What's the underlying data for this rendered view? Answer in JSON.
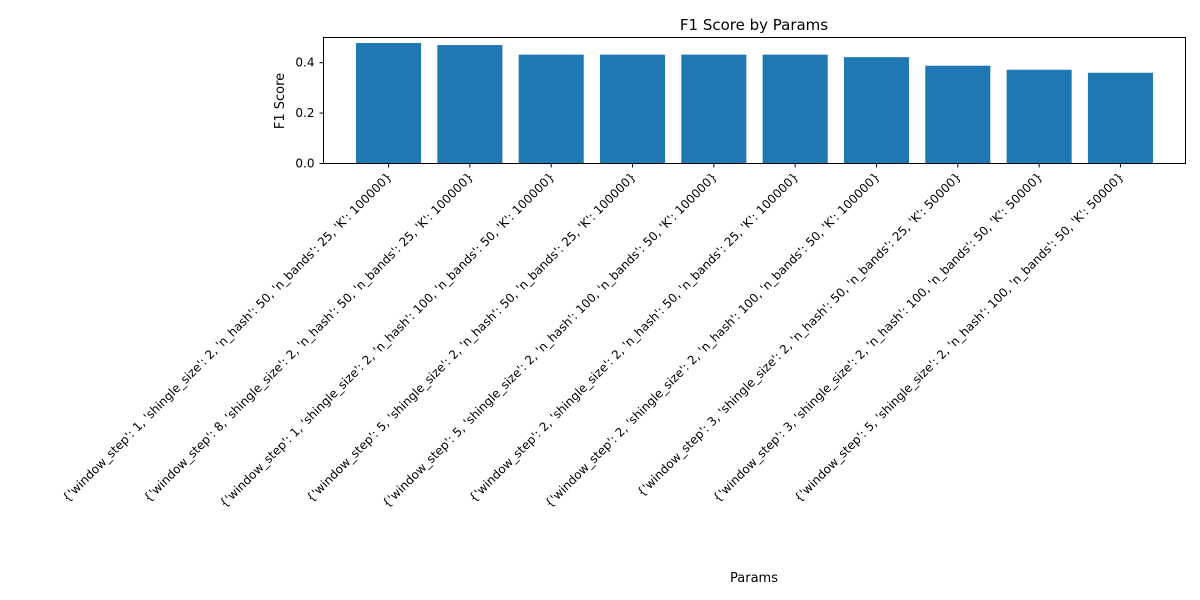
{
  "chart_data": {
    "type": "bar",
    "title": "F1 Score by Params",
    "xlabel": "Params",
    "ylabel": "F1 Score",
    "ylim": [
      0,
      0.5
    ],
    "yticks": [
      0.0,
      0.2,
      0.4
    ],
    "ytick_labels": [
      "0.0",
      "0.2",
      "0.4"
    ],
    "bar_color": "#1f77b4",
    "grid": false,
    "categories": [
      "{'window_step': 1, 'shingle_size': 2, 'n_hash': 50, 'n_bands': 25, 'K': 100000}",
      "{'window_step': 8, 'shingle_size': 2, 'n_hash': 50, 'n_bands': 25, 'K': 100000}",
      "{'window_step': 1, 'shingle_size': 2, 'n_hash': 100, 'n_bands': 50, 'K': 100000}",
      "{'window_step': 5, 'shingle_size': 2, 'n_hash': 50, 'n_bands': 25, 'K': 100000}",
      "{'window_step': 5, 'shingle_size': 2, 'n_hash': 100, 'n_bands': 50, 'K': 100000}",
      "{'window_step': 2, 'shingle_size': 2, 'n_hash': 50, 'n_bands': 25, 'K': 100000}",
      "{'window_step': 2, 'shingle_size': 2, 'n_hash': 100, 'n_bands': 50, 'K': 100000}",
      "{'window_step': 3, 'shingle_size': 2, 'n_hash': 50, 'n_bands': 25, 'K': 50000}",
      "{'window_step': 3, 'shingle_size': 2, 'n_hash': 100, 'n_bands': 50, 'K': 50000}",
      "{'window_step': 5, 'shingle_size': 2, 'n_hash': 100, 'n_bands': 50, 'K': 50000}"
    ],
    "values": [
      0.478,
      0.47,
      0.432,
      0.432,
      0.432,
      0.432,
      0.422,
      0.388,
      0.372,
      0.36
    ]
  }
}
